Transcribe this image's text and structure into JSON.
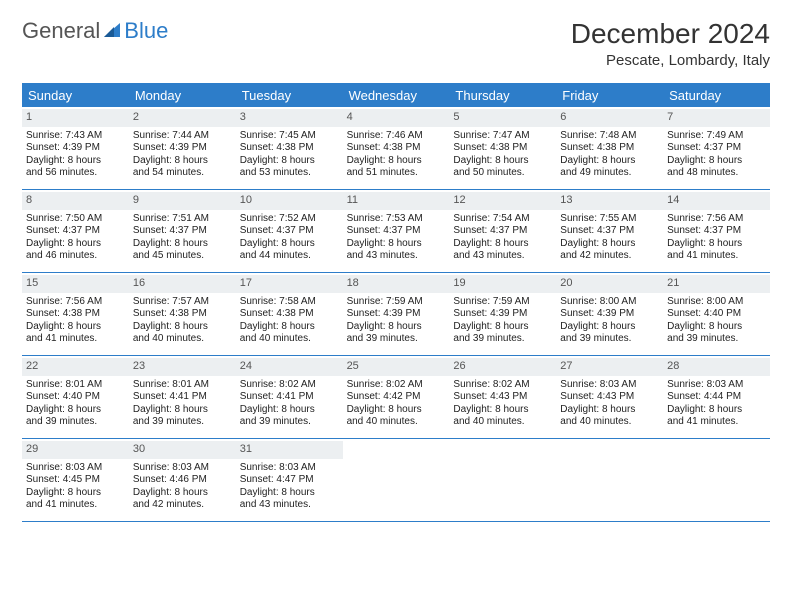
{
  "logo": {
    "word1": "General",
    "word2": "Blue"
  },
  "title": "December 2024",
  "location": "Pescate, Lombardy, Italy",
  "accent_color": "#2d7dc9",
  "header_bg": "#2d7dc9",
  "daynum_bg": "#eceff1",
  "day_names": [
    "Sunday",
    "Monday",
    "Tuesday",
    "Wednesday",
    "Thursday",
    "Friday",
    "Saturday"
  ],
  "weeks": [
    [
      {
        "n": "1",
        "sr": "Sunrise: 7:43 AM",
        "ss": "Sunset: 4:39 PM",
        "d1": "Daylight: 8 hours",
        "d2": "and 56 minutes."
      },
      {
        "n": "2",
        "sr": "Sunrise: 7:44 AM",
        "ss": "Sunset: 4:39 PM",
        "d1": "Daylight: 8 hours",
        "d2": "and 54 minutes."
      },
      {
        "n": "3",
        "sr": "Sunrise: 7:45 AM",
        "ss": "Sunset: 4:38 PM",
        "d1": "Daylight: 8 hours",
        "d2": "and 53 minutes."
      },
      {
        "n": "4",
        "sr": "Sunrise: 7:46 AM",
        "ss": "Sunset: 4:38 PM",
        "d1": "Daylight: 8 hours",
        "d2": "and 51 minutes."
      },
      {
        "n": "5",
        "sr": "Sunrise: 7:47 AM",
        "ss": "Sunset: 4:38 PM",
        "d1": "Daylight: 8 hours",
        "d2": "and 50 minutes."
      },
      {
        "n": "6",
        "sr": "Sunrise: 7:48 AM",
        "ss": "Sunset: 4:38 PM",
        "d1": "Daylight: 8 hours",
        "d2": "and 49 minutes."
      },
      {
        "n": "7",
        "sr": "Sunrise: 7:49 AM",
        "ss": "Sunset: 4:37 PM",
        "d1": "Daylight: 8 hours",
        "d2": "and 48 minutes."
      }
    ],
    [
      {
        "n": "8",
        "sr": "Sunrise: 7:50 AM",
        "ss": "Sunset: 4:37 PM",
        "d1": "Daylight: 8 hours",
        "d2": "and 46 minutes."
      },
      {
        "n": "9",
        "sr": "Sunrise: 7:51 AM",
        "ss": "Sunset: 4:37 PM",
        "d1": "Daylight: 8 hours",
        "d2": "and 45 minutes."
      },
      {
        "n": "10",
        "sr": "Sunrise: 7:52 AM",
        "ss": "Sunset: 4:37 PM",
        "d1": "Daylight: 8 hours",
        "d2": "and 44 minutes."
      },
      {
        "n": "11",
        "sr": "Sunrise: 7:53 AM",
        "ss": "Sunset: 4:37 PM",
        "d1": "Daylight: 8 hours",
        "d2": "and 43 minutes."
      },
      {
        "n": "12",
        "sr": "Sunrise: 7:54 AM",
        "ss": "Sunset: 4:37 PM",
        "d1": "Daylight: 8 hours",
        "d2": "and 43 minutes."
      },
      {
        "n": "13",
        "sr": "Sunrise: 7:55 AM",
        "ss": "Sunset: 4:37 PM",
        "d1": "Daylight: 8 hours",
        "d2": "and 42 minutes."
      },
      {
        "n": "14",
        "sr": "Sunrise: 7:56 AM",
        "ss": "Sunset: 4:37 PM",
        "d1": "Daylight: 8 hours",
        "d2": "and 41 minutes."
      }
    ],
    [
      {
        "n": "15",
        "sr": "Sunrise: 7:56 AM",
        "ss": "Sunset: 4:38 PM",
        "d1": "Daylight: 8 hours",
        "d2": "and 41 minutes."
      },
      {
        "n": "16",
        "sr": "Sunrise: 7:57 AM",
        "ss": "Sunset: 4:38 PM",
        "d1": "Daylight: 8 hours",
        "d2": "and 40 minutes."
      },
      {
        "n": "17",
        "sr": "Sunrise: 7:58 AM",
        "ss": "Sunset: 4:38 PM",
        "d1": "Daylight: 8 hours",
        "d2": "and 40 minutes."
      },
      {
        "n": "18",
        "sr": "Sunrise: 7:59 AM",
        "ss": "Sunset: 4:39 PM",
        "d1": "Daylight: 8 hours",
        "d2": "and 39 minutes."
      },
      {
        "n": "19",
        "sr": "Sunrise: 7:59 AM",
        "ss": "Sunset: 4:39 PM",
        "d1": "Daylight: 8 hours",
        "d2": "and 39 minutes."
      },
      {
        "n": "20",
        "sr": "Sunrise: 8:00 AM",
        "ss": "Sunset: 4:39 PM",
        "d1": "Daylight: 8 hours",
        "d2": "and 39 minutes."
      },
      {
        "n": "21",
        "sr": "Sunrise: 8:00 AM",
        "ss": "Sunset: 4:40 PM",
        "d1": "Daylight: 8 hours",
        "d2": "and 39 minutes."
      }
    ],
    [
      {
        "n": "22",
        "sr": "Sunrise: 8:01 AM",
        "ss": "Sunset: 4:40 PM",
        "d1": "Daylight: 8 hours",
        "d2": "and 39 minutes."
      },
      {
        "n": "23",
        "sr": "Sunrise: 8:01 AM",
        "ss": "Sunset: 4:41 PM",
        "d1": "Daylight: 8 hours",
        "d2": "and 39 minutes."
      },
      {
        "n": "24",
        "sr": "Sunrise: 8:02 AM",
        "ss": "Sunset: 4:41 PM",
        "d1": "Daylight: 8 hours",
        "d2": "and 39 minutes."
      },
      {
        "n": "25",
        "sr": "Sunrise: 8:02 AM",
        "ss": "Sunset: 4:42 PM",
        "d1": "Daylight: 8 hours",
        "d2": "and 40 minutes."
      },
      {
        "n": "26",
        "sr": "Sunrise: 8:02 AM",
        "ss": "Sunset: 4:43 PM",
        "d1": "Daylight: 8 hours",
        "d2": "and 40 minutes."
      },
      {
        "n": "27",
        "sr": "Sunrise: 8:03 AM",
        "ss": "Sunset: 4:43 PM",
        "d1": "Daylight: 8 hours",
        "d2": "and 40 minutes."
      },
      {
        "n": "28",
        "sr": "Sunrise: 8:03 AM",
        "ss": "Sunset: 4:44 PM",
        "d1": "Daylight: 8 hours",
        "d2": "and 41 minutes."
      }
    ],
    [
      {
        "n": "29",
        "sr": "Sunrise: 8:03 AM",
        "ss": "Sunset: 4:45 PM",
        "d1": "Daylight: 8 hours",
        "d2": "and 41 minutes."
      },
      {
        "n": "30",
        "sr": "Sunrise: 8:03 AM",
        "ss": "Sunset: 4:46 PM",
        "d1": "Daylight: 8 hours",
        "d2": "and 42 minutes."
      },
      {
        "n": "31",
        "sr": "Sunrise: 8:03 AM",
        "ss": "Sunset: 4:47 PM",
        "d1": "Daylight: 8 hours",
        "d2": "and 43 minutes."
      },
      {
        "empty": true
      },
      {
        "empty": true
      },
      {
        "empty": true
      },
      {
        "empty": true
      }
    ]
  ]
}
